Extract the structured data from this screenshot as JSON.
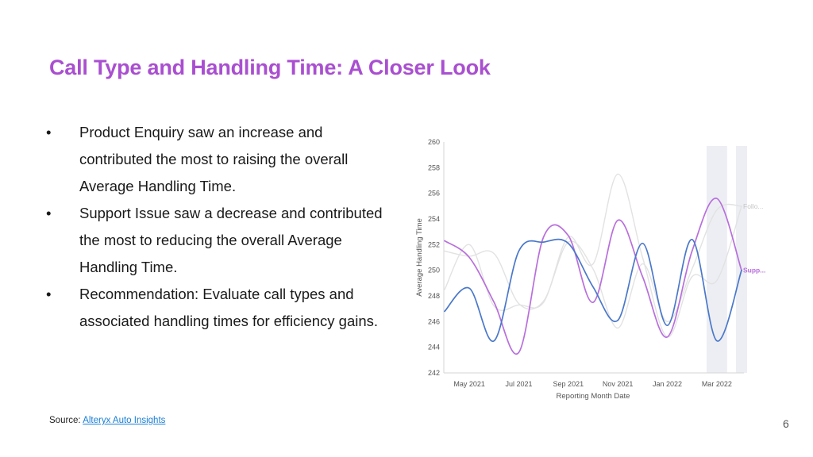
{
  "slide": {
    "title": "Call Type and Handling Time: A Closer Look",
    "bullets": [
      "Product Enquiry saw an increase and contributed the most to raising the overall Average Handling Time.",
      "Support Issue saw a decrease and contributed the most to reducing the overall Average Handling Time.",
      "Recommendation: Evaluate call types and associated handling times for efficiency gains."
    ],
    "bullet_symbol": "•",
    "source_prefix": "Source: ",
    "source_link": "Alteryx Auto Insights",
    "page_number": "6"
  },
  "chart_data": {
    "type": "line",
    "xlabel": "Reporting Month Date",
    "ylabel": "Average Handling Time",
    "ylim": [
      242,
      260
    ],
    "yticks": [
      242,
      244,
      246,
      248,
      250,
      252,
      254,
      256,
      258,
      260
    ],
    "x": [
      "Apr 2021",
      "May 2021",
      "Jun 2021",
      "Jul 2021",
      "Aug 2021",
      "Sep 2021",
      "Oct 2021",
      "Nov 2021",
      "Dec 2021",
      "Jan 2022",
      "Feb 2022",
      "Mar 2022",
      "Apr 2022"
    ],
    "xtick_labels": [
      "May 2021",
      "Jul 2021",
      "Sep 2021",
      "Nov 2021",
      "Jan 2022",
      "Mar 2022"
    ],
    "grid": false,
    "shaded_months": [
      "Mar 2022",
      "Apr 2022"
    ],
    "series": [
      {
        "name": "",
        "color": "#e2e2e2",
        "values": [
          248.5,
          252.0,
          247.2,
          247.3,
          247.5,
          252.6,
          250.5,
          257.5,
          251.0,
          244.8,
          249.5,
          249.2,
          255.0
        ]
      },
      {
        "name": "",
        "color": "#e2e2e2",
        "values": [
          251.5,
          251.1,
          251.3,
          247.4,
          247.6,
          252.2,
          250.1,
          245.5,
          250.5,
          246.0,
          250.1,
          254.7,
          255.0
        ]
      },
      {
        "name": "",
        "color": "#b86fdc",
        "values": [
          252.3,
          251.0,
          247.5,
          243.6,
          252.6,
          252.7,
          247.5,
          253.9,
          249.5,
          244.8,
          251.5,
          255.6,
          250.0
        ]
      },
      {
        "name": "",
        "color": "#4a78c9",
        "values": [
          246.8,
          248.6,
          244.5,
          251.5,
          252.2,
          252.1,
          248.7,
          246.1,
          252.1,
          245.7,
          252.4,
          244.5,
          250.0
        ]
      }
    ],
    "end_labels": [
      {
        "text": "Follo...",
        "color": "#c6c6c6",
        "value": 255.0
      },
      {
        "text": "Supp...",
        "color": "#b86fdc",
        "value": 250.0
      }
    ]
  }
}
